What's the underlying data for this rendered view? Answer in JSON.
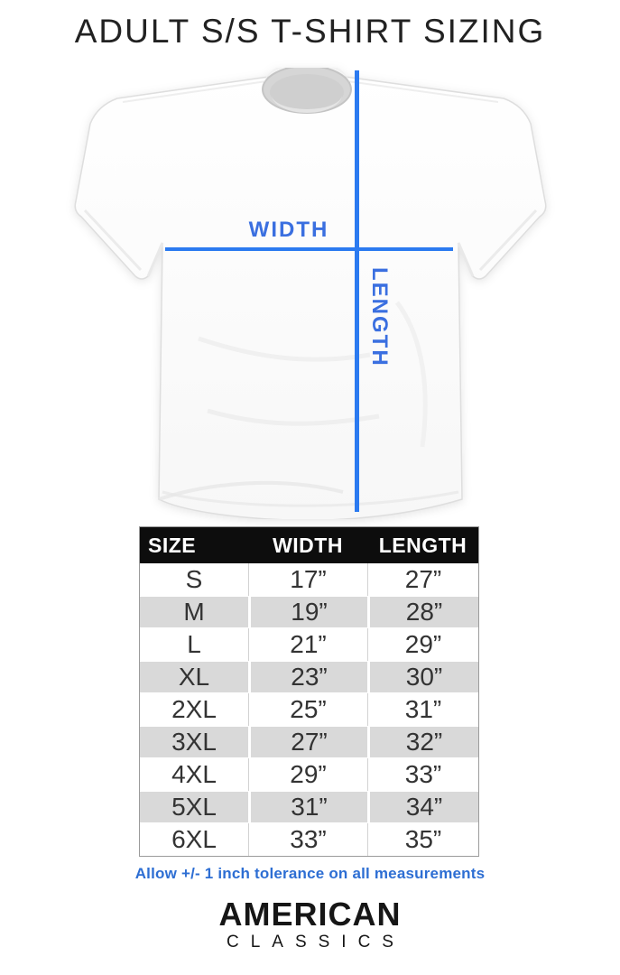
{
  "title": "ADULT S/S T-SHIRT SIZING",
  "diagram": {
    "width_label": "WIDTH",
    "length_label": "LENGTH"
  },
  "table": {
    "headers": [
      "SIZE",
      "WIDTH",
      "LENGTH"
    ],
    "rows": [
      [
        "S",
        "17”",
        "27”"
      ],
      [
        "M",
        "19”",
        "28”"
      ],
      [
        "L",
        "21”",
        "29”"
      ],
      [
        "XL",
        "23”",
        "30”"
      ],
      [
        "2XL",
        "25”",
        "31”"
      ],
      [
        "3XL",
        "27”",
        "32”"
      ],
      [
        "4XL",
        "29”",
        "33”"
      ],
      [
        "5XL",
        "31”",
        "34”"
      ],
      [
        "6XL",
        "33”",
        "35”"
      ]
    ]
  },
  "note": "Allow +/- 1 inch tolerance on all measurements",
  "logo": {
    "line1": "AMERICAN",
    "line2": "CLASSICS"
  },
  "colors": {
    "measure_line": "#2b7af0",
    "measure_label": "#3a6fe0",
    "note_text": "#2d6ed3",
    "table_header_bg": "#0d0d0d",
    "table_stripe": "#d9d9d9"
  }
}
